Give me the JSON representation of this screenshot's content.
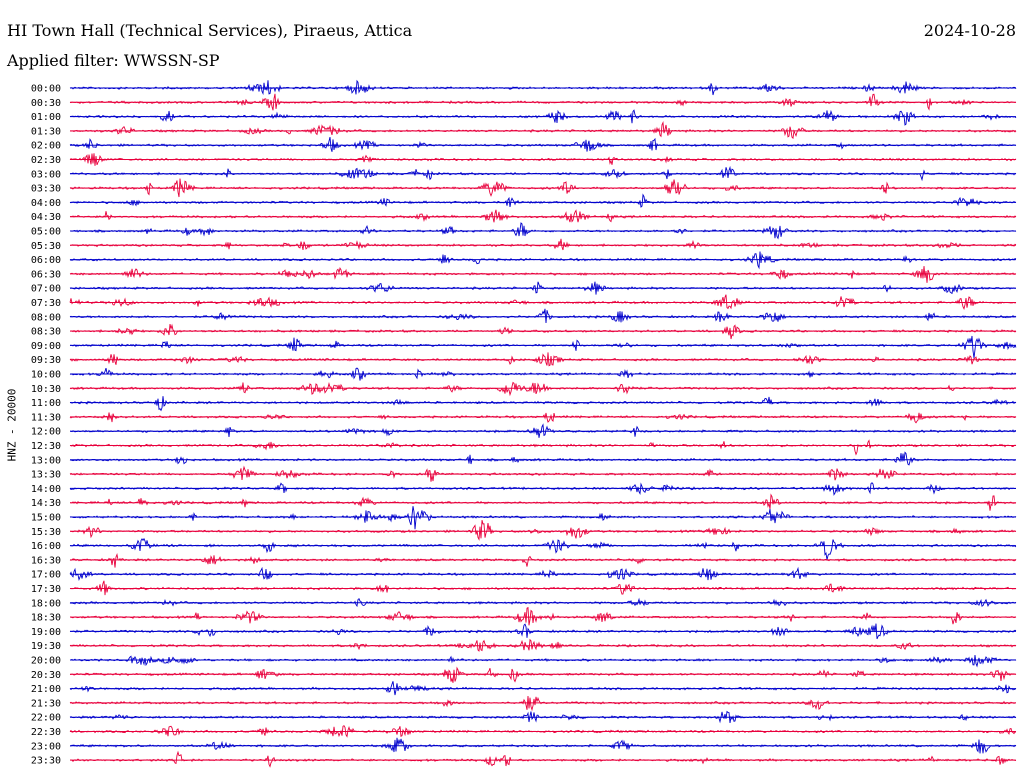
{
  "header": {
    "station": "HI Town Hall (Technical Services), Piraeus, Attica",
    "date": "2024-10-28",
    "filter": "Applied filter: WWSSN-SP",
    "channel_label": "HNZ - 20000"
  },
  "colors": {
    "even_rows": "#0000cc",
    "odd_rows": "#e8003c",
    "background": "#ffffff",
    "text": "#000000"
  },
  "chart_data": {
    "type": "line",
    "ylabel": "HNZ - 20000",
    "categories": [
      "00:00",
      "00:30",
      "01:00",
      "01:30",
      "02:00",
      "02:30",
      "03:00",
      "03:30",
      "04:00",
      "04:30",
      "05:00",
      "05:30",
      "06:00",
      "06:30",
      "07:00",
      "07:30",
      "08:00",
      "08:30",
      "09:00",
      "09:30",
      "10:00",
      "10:30",
      "11:00",
      "11:30",
      "12:00",
      "12:30",
      "13:00",
      "13:30",
      "14:00",
      "14:30",
      "15:00",
      "15:30",
      "16:00",
      "16:30",
      "17:00",
      "17:30",
      "18:00",
      "18:30",
      "19:00",
      "19:30",
      "20:00",
      "20:30",
      "21:00",
      "21:30",
      "22:00",
      "22:30",
      "23:00",
      "23:30"
    ],
    "series_colors": [
      "blue",
      "red"
    ],
    "grid": false,
    "legend": "none"
  }
}
